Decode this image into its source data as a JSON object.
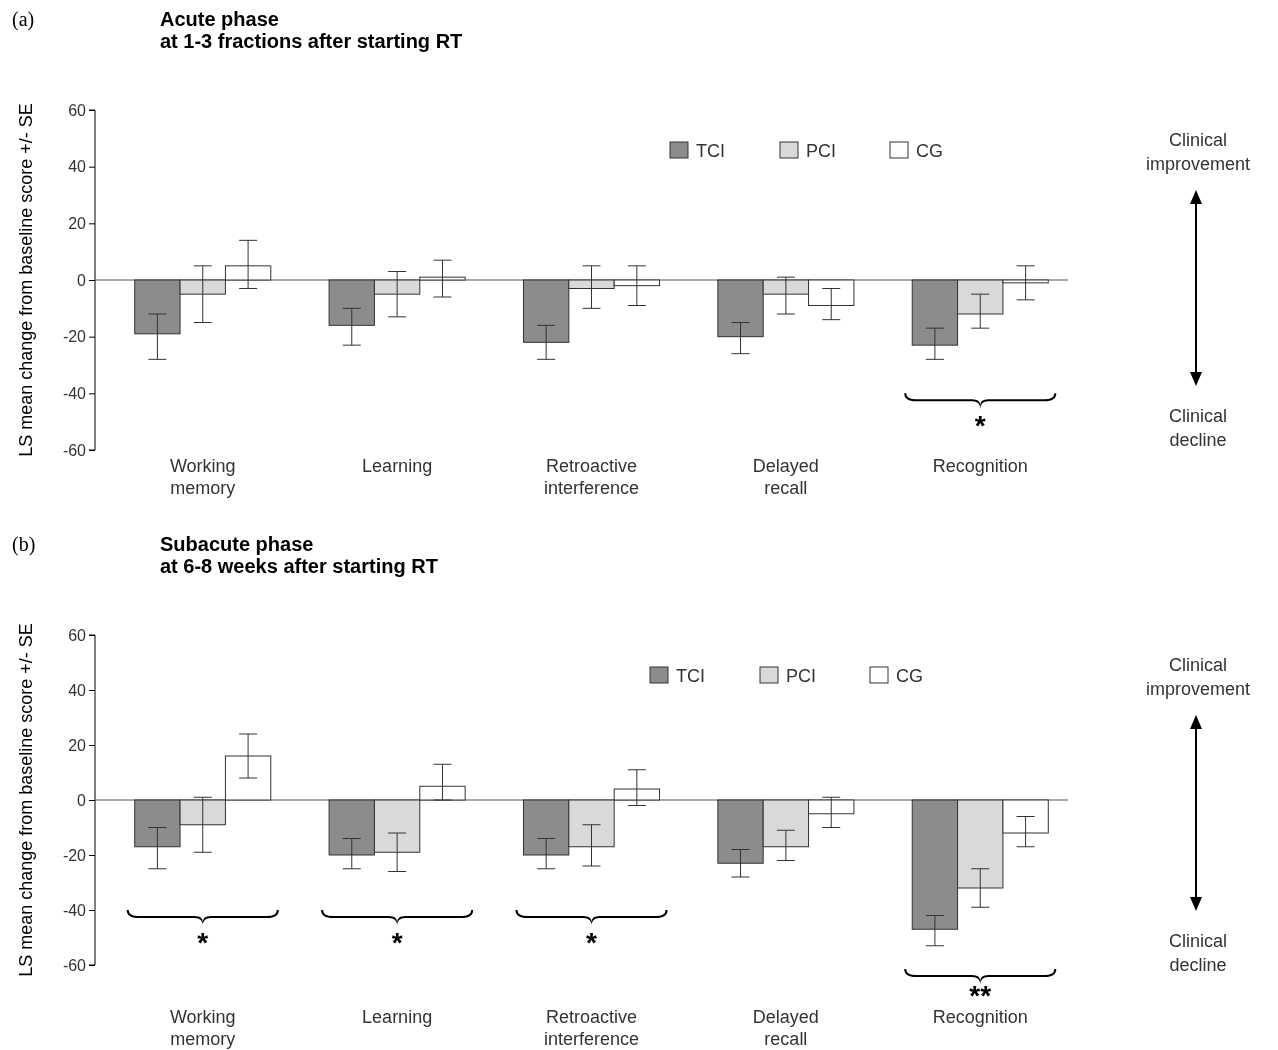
{
  "chart_data": [
    {
      "type": "bar",
      "title": "Acute phase\nat 1-3 fractions after starting RT",
      "ylabel": "LS mean change from baseline score +/- SE",
      "categories": [
        "Working\nmemory",
        "Learning",
        "Retroactive\ninterference",
        "Delayed\nrecall",
        "Recognition"
      ],
      "ylim": [
        -60,
        60
      ],
      "yticks": [
        -60,
        -40,
        -20,
        0,
        20,
        40,
        60
      ],
      "grid": false,
      "legend": "top right",
      "series": [
        {
          "name": "TCI",
          "color": "#8c8c8c",
          "values": [
            -19,
            -16,
            -22,
            -20,
            -23
          ],
          "errors": [
            [
              -28,
              -12
            ],
            [
              -23,
              -10
            ],
            [
              -28,
              -16
            ],
            [
              -26,
              -15
            ],
            [
              -28,
              -17
            ]
          ]
        },
        {
          "name": "PCI",
          "color": "#d9d9d9",
          "values": [
            -5,
            -5,
            -3,
            -5,
            -12
          ],
          "errors": [
            [
              -15,
              5
            ],
            [
              -13,
              3
            ],
            [
              -10,
              5
            ],
            [
              -12,
              1
            ],
            [
              -17,
              -5
            ]
          ]
        },
        {
          "name": "CG",
          "color": "#ffffff",
          "values": [
            5,
            1,
            -2,
            -9,
            -1
          ],
          "errors": [
            [
              -3,
              14
            ],
            [
              -6,
              7
            ],
            [
              -9,
              5
            ],
            [
              -14,
              -3
            ],
            [
              -7,
              5
            ]
          ]
        }
      ],
      "ref_lines": [
        {
          "axis": "y",
          "value": 0,
          "color": "#555555"
        }
      ],
      "annotations": [
        "(a)",
        "Clinical\nimprovement",
        "Clinical\ndecline",
        "*"
      ]
    },
    {
      "type": "bar",
      "title": "Subacute phase\nat 6-8 weeks after starting RT",
      "ylabel": "LS mean change from baseline score +/- SE",
      "categories": [
        "Working\nmemory",
        "Learning",
        "Retroactive\ninterference",
        "Delayed\nrecall",
        "Recognition"
      ],
      "ylim": [
        -60,
        60
      ],
      "yticks": [
        -60,
        -40,
        -20,
        0,
        20,
        40,
        60
      ],
      "grid": false,
      "legend": "top right",
      "series": [
        {
          "name": "TCI",
          "color": "#8c8c8c",
          "values": [
            -17,
            -20,
            -20,
            -23,
            -47
          ],
          "errors": [
            [
              -25,
              -10
            ],
            [
              -25,
              -14
            ],
            [
              -25,
              -14
            ],
            [
              -28,
              -18
            ],
            [
              -53,
              -42
            ]
          ]
        },
        {
          "name": "PCI",
          "color": "#d9d9d9",
          "values": [
            -9,
            -19,
            -17,
            -17,
            -32
          ],
          "errors": [
            [
              -19,
              1
            ],
            [
              -26,
              -12
            ],
            [
              -24,
              -9
            ],
            [
              -22,
              -11
            ],
            [
              -39,
              -25
            ]
          ]
        },
        {
          "name": "CG",
          "color": "#ffffff",
          "values": [
            16,
            5,
            4,
            -5,
            -12
          ],
          "errors": [
            [
              8,
              24
            ],
            [
              0,
              13
            ],
            [
              -2,
              11
            ],
            [
              -10,
              1
            ],
            [
              -17,
              -6
            ]
          ]
        }
      ],
      "ref_lines": [
        {
          "axis": "y",
          "value": 0,
          "color": "#555555"
        }
      ],
      "annotations": [
        "(b)",
        "Clinical\nimprovement",
        "Clinical\ndecline",
        "*",
        "*",
        "*",
        "**"
      ]
    }
  ]
}
